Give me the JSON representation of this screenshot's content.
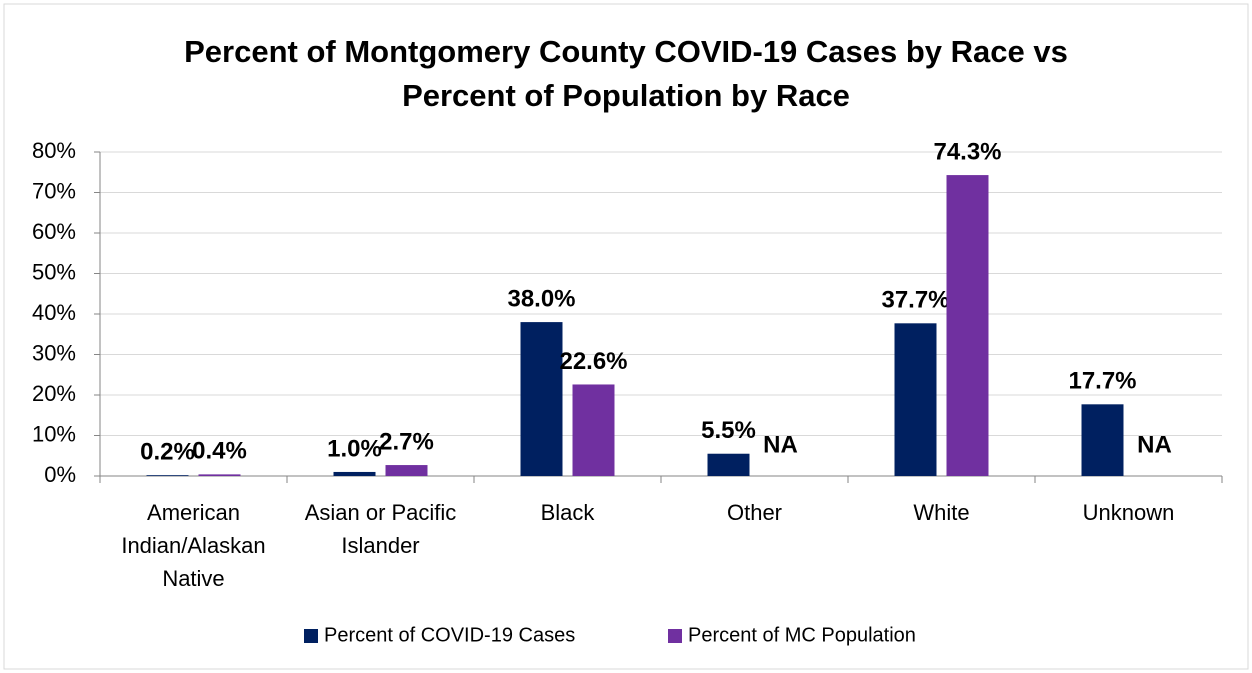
{
  "chart_data": {
    "type": "bar",
    "title": "Percent of Montgomery County COVID-19 Cases by Race vs Percent of Population by Race",
    "categories": [
      "American Indian/Alaskan Native",
      "Asian or Pacific Islander",
      "Black",
      "Other",
      "White",
      "Unknown"
    ],
    "series": [
      {
        "name": "Percent of COVID-19 Cases",
        "color": "#002060",
        "values": [
          0.2,
          1.0,
          38.0,
          5.5,
          37.7,
          17.7
        ],
        "value_labels": [
          "0.2%",
          "1.0%",
          "38.0%",
          "5.5%",
          "37.7%",
          "17.7%"
        ]
      },
      {
        "name": "Percent of MC Population",
        "color": "#7030a0",
        "values": [
          0.4,
          2.7,
          22.6,
          null,
          74.3,
          null
        ],
        "value_labels": [
          "0.4%",
          "2.7%",
          "22.6%",
          "NA",
          "74.3%",
          "NA"
        ]
      }
    ],
    "ylim": [
      0,
      80
    ],
    "yticks": [
      {
        "value": 0,
        "label": "0%"
      },
      {
        "value": 10,
        "label": "10%"
      },
      {
        "value": 20,
        "label": "20%"
      },
      {
        "value": 30,
        "label": "30%"
      },
      {
        "value": 40,
        "label": "40%"
      },
      {
        "value": 50,
        "label": "50%"
      },
      {
        "value": 60,
        "label": "60%"
      },
      {
        "value": 70,
        "label": "70%"
      },
      {
        "value": 80,
        "label": "80%"
      }
    ],
    "grid": true,
    "legend": "bottom"
  }
}
